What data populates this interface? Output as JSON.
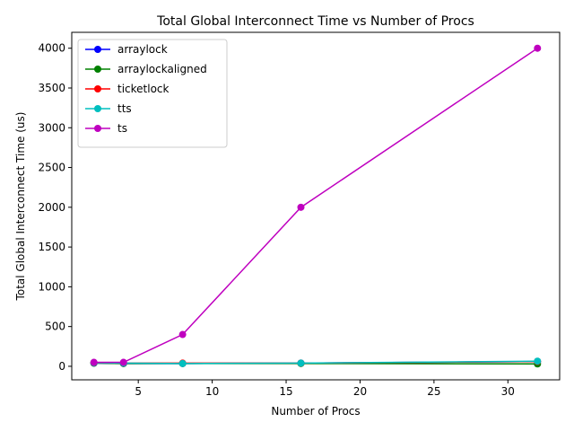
{
  "chart_data": {
    "type": "line",
    "title": "Total Global Interconnect Time vs Number of Procs",
    "xlabel": "Number of Procs",
    "ylabel": "Total Global Interconnect Time (us)",
    "xlim": [
      0.5,
      33.5
    ],
    "ylim": [
      -170,
      4200
    ],
    "xticks": [
      5,
      10,
      15,
      20,
      25,
      30
    ],
    "yticks": [
      0,
      500,
      1000,
      1500,
      2000,
      2500,
      3000,
      3500,
      4000
    ],
    "grid": false,
    "legend_position": "top-left",
    "x": [
      2,
      4,
      8,
      16,
      32
    ],
    "series": [
      {
        "name": "arraylock",
        "color": "#0000ff",
        "values": [
          40,
          35,
          35,
          40,
          60
        ]
      },
      {
        "name": "arraylockaligned",
        "color": "#008000",
        "values": [
          40,
          35,
          35,
          35,
          30
        ]
      },
      {
        "name": "ticketlock",
        "color": "#ff0000",
        "values": [
          45,
          40,
          40,
          40,
          60
        ]
      },
      {
        "name": "tts",
        "color": "#00bfbf",
        "values": [
          45,
          40,
          35,
          40,
          65
        ]
      },
      {
        "name": "ts",
        "color": "#bf00bf",
        "values": [
          50,
          50,
          400,
          2000,
          4000
        ]
      }
    ]
  }
}
